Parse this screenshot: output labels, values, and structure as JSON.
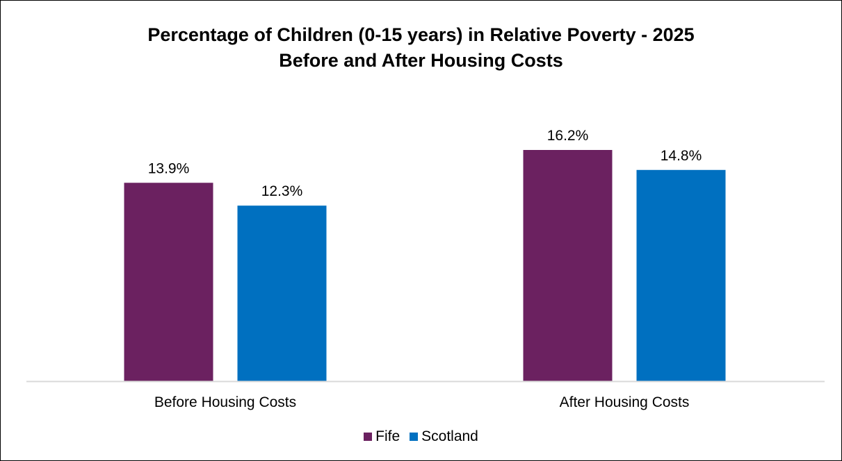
{
  "chart_data": {
    "type": "bar",
    "title": "Percentage of Children (0-15 years) in Relative Poverty -  2025",
    "subtitle": "Before and After Housing Costs",
    "categories": [
      "Before Housing Costs",
      "After Housing Costs"
    ],
    "series": [
      {
        "name": "Fife",
        "values": [
          13.9,
          16.2
        ],
        "labels": [
          "13.9%",
          "16.2%"
        ],
        "color": "#6B2160"
      },
      {
        "name": "Scotland",
        "values": [
          12.3,
          14.8
        ],
        "labels": [
          "12.3%",
          "14.8%"
        ],
        "color": "#0070C0"
      }
    ],
    "ylim": [
      0,
      16.2
    ],
    "grid": false,
    "legend": "bottom",
    "axis_color": "#D9D9D9"
  }
}
